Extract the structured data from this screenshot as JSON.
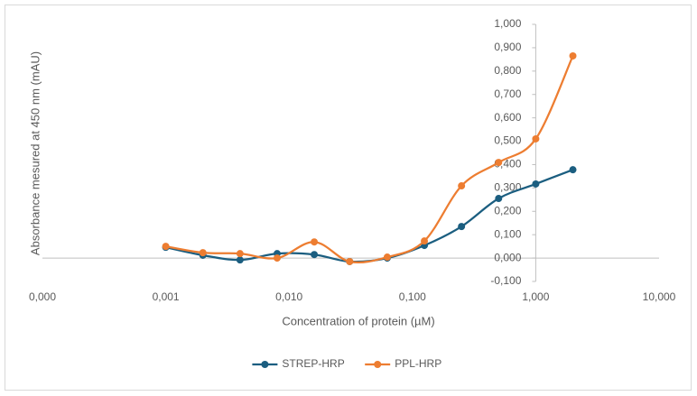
{
  "chart_data": {
    "type": "line",
    "x_label": "Concentration of protein (µM)",
    "y_label": "Absorbance mesured at 450 nm (mAU)",
    "x": [
      0.001,
      0.002,
      0.004,
      0.008,
      0.016,
      0.031,
      0.0625,
      0.125,
      0.25,
      0.5,
      1,
      2
    ],
    "series": [
      {
        "name": "STREP-HRP",
        "color": "#1b5e80",
        "values": [
          0.046,
          0.012,
          -0.008,
          0.019,
          0.015,
          -0.015,
          0.0,
          0.054,
          0.135,
          0.255,
          0.317,
          0.378
        ]
      },
      {
        "name": "PPL-HRP",
        "color": "#ed7d31",
        "values": [
          0.05,
          0.023,
          0.019,
          0.0,
          0.069,
          -0.015,
          0.004,
          0.073,
          0.309,
          0.409,
          0.51,
          0.865
        ]
      }
    ],
    "x_log": true,
    "xlim": [
      0.0001,
      10
    ],
    "xticks": [
      {
        "value": 0.0001,
        "label": "0,000"
      },
      {
        "value": 0.001,
        "label": "0,001"
      },
      {
        "value": 0.01,
        "label": "0,010"
      },
      {
        "value": 0.1,
        "label": "0,100"
      },
      {
        "value": 1,
        "label": "1,000"
      },
      {
        "value": 10,
        "label": "10,000"
      }
    ],
    "ylim": [
      -0.1,
      1.0
    ],
    "yticks": [
      {
        "value": -0.1,
        "label": "-0,100"
      },
      {
        "value": 0,
        "label": "0,000"
      },
      {
        "value": 0.1,
        "label": "0,100"
      },
      {
        "value": 0.2,
        "label": "0,200"
      },
      {
        "value": 0.3,
        "label": "0,300"
      },
      {
        "value": 0.4,
        "label": "0,400"
      },
      {
        "value": 0.5,
        "label": "0,500"
      },
      {
        "value": 0.6,
        "label": "0,600"
      },
      {
        "value": 0.7,
        "label": "0,700"
      },
      {
        "value": 0.8,
        "label": "0,800"
      },
      {
        "value": 0.9,
        "label": "0,900"
      },
      {
        "value": 1.0,
        "label": "1,000"
      }
    ],
    "y_axis_crosses_x": 1,
    "smooth": true,
    "legend": "bottom"
  }
}
